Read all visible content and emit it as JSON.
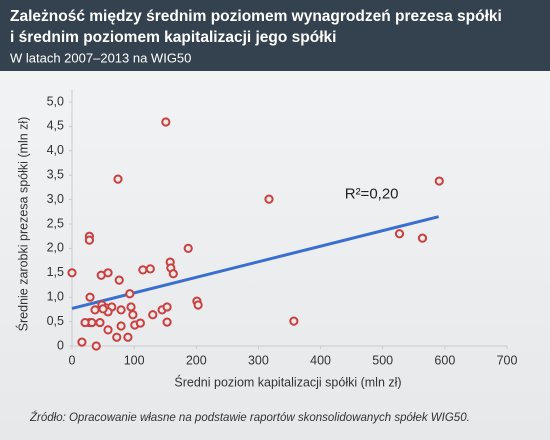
{
  "chart_data": {
    "type": "scatter",
    "title": [
      "Zależność między średnim poziomem wynagrodzeń prezesa spółki",
      "i średnim poziomem kapitalizacji jego spółki"
    ],
    "subtitle": "W latach 2007–2013 na WIG50",
    "x_label": "Średni poziom kapitalizacji spółki (mln zł)",
    "y_label": "Średnie zarobki prezesa spółki (mln zł)",
    "source": "Źródło: Opracowanie własne na podstawie raportów skonsolidowanych spółek WIG50.",
    "annotation": "R²=0,20",
    "xlim": [
      0,
      700
    ],
    "xticks": [
      0,
      100,
      200,
      300,
      400,
      500,
      600,
      700
    ],
    "ylim": [
      0,
      5
    ],
    "yticks": [
      0,
      {
        "value": 0.5,
        "label": "0,5"
      },
      {
        "value": 1,
        "label": "1,0"
      },
      {
        "value": 1.5,
        "label": "1,5"
      },
      {
        "value": 2,
        "label": "2,0"
      },
      {
        "value": 2.5,
        "label": "2,5"
      },
      {
        "value": 3,
        "label": "3,0"
      },
      {
        "value": 3.5,
        "label": "3,5"
      },
      {
        "value": 4,
        "label": "4,0"
      },
      {
        "value": 4.5,
        "label": "4,5"
      },
      {
        "value": 5,
        "label": "5,0"
      }
    ],
    "grid": false,
    "series": [
      {
        "color": "#c8403f",
        "x": [
          0,
          16,
          29,
          28,
          28,
          28,
          32,
          39,
          45,
          48,
          47,
          58,
          55,
          58,
          64,
          72,
          74,
          76,
          79,
          79,
          90,
          93,
          95,
          98,
          101,
          110,
          114,
          126,
          130,
          145,
          151,
          153,
          153,
          158,
          159,
          163,
          187,
          201,
          203,
          317,
          357,
          527,
          564,
          591,
          37,
          21,
          58,
          50
        ],
        "y": [
          1.5,
          0.08,
          1.0,
          2.25,
          2.17,
          0.48,
          0.48,
          0.0,
          0.48,
          0.84,
          1.45,
          1.5,
          0.78,
          0.33,
          0.8,
          0.18,
          3.42,
          1.35,
          0.74,
          0.41,
          0.18,
          1.07,
          0.8,
          0.64,
          0.43,
          0.47,
          1.56,
          1.58,
          0.64,
          0.74,
          4.59,
          0.8,
          0.49,
          1.72,
          1.6,
          1.48,
          2.0,
          0.92,
          0.84,
          3.01,
          0.51,
          2.3,
          2.21,
          3.38,
          0.74,
          0.48,
          0.7,
          0.76
        ]
      }
    ],
    "trendline": {
      "color": "#3a6fd0",
      "x": [
        0,
        590
      ],
      "y": [
        0.77,
        2.65
      ]
    }
  }
}
